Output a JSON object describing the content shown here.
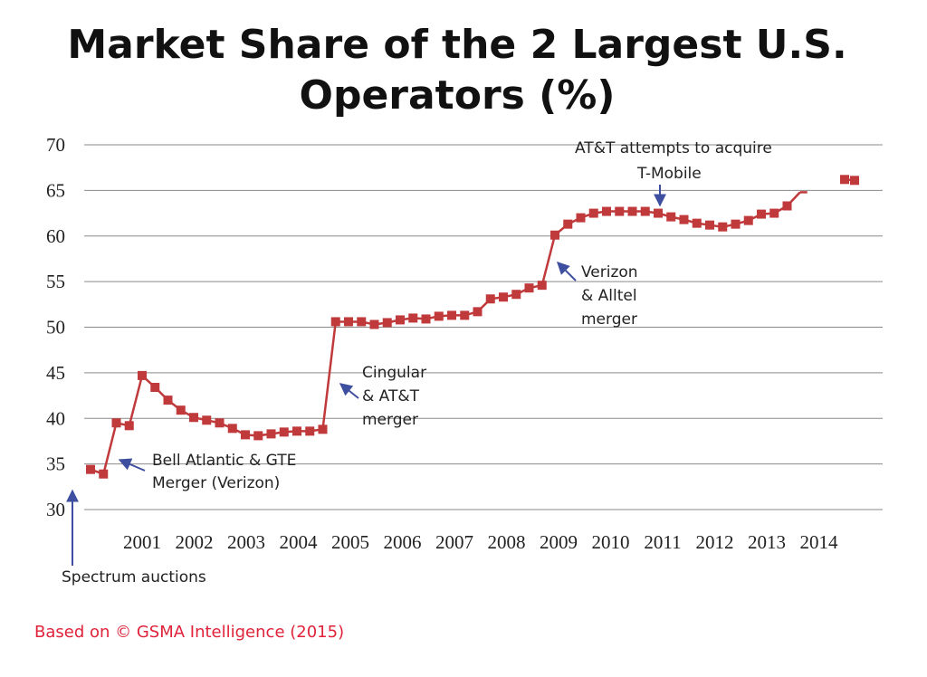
{
  "chart_data": {
    "type": "line",
    "title_lines": [
      "Market Share of the 2 Largest U.S.",
      "Operators (%)"
    ],
    "ylim": [
      30,
      70
    ],
    "yticks": [
      "70",
      "65",
      "60",
      "55",
      "50",
      "45",
      "40",
      "35",
      "30"
    ],
    "xticks": [
      "2001",
      "2002",
      "2003",
      "2004",
      "2005",
      "2006",
      "2007",
      "2008",
      "2009",
      "2010",
      "2011",
      "2012",
      "2013",
      "2014"
    ],
    "series": [
      {
        "name": "Market share of the 2 largest U.S. operators",
        "color": "#c0393b",
        "values": [
          34.4,
          33.9,
          39.5,
          39.2,
          44.7,
          43.4,
          42.0,
          40.9,
          40.1,
          39.8,
          39.5,
          38.9,
          38.2,
          38.1,
          38.3,
          38.5,
          38.6,
          38.6,
          38.8,
          50.6,
          50.6,
          50.6,
          50.3,
          50.5,
          50.8,
          51.0,
          50.9,
          51.2,
          51.3,
          51.3,
          51.7,
          53.1,
          53.3,
          53.6,
          54.3,
          54.6,
          60.1,
          61.3,
          62.0,
          62.5,
          62.7,
          62.7,
          62.7,
          62.7,
          62.5,
          62.1,
          61.8,
          61.4,
          61.2,
          61.0,
          61.3,
          61.7,
          62.4,
          62.5,
          63.3,
          64.8,
          66.2,
          66.1
        ],
        "dashed_segment": [
          64.8,
          64.8
        ]
      }
    ],
    "annotations": [
      {
        "lines": [
          "Spectrum auctions"
        ]
      },
      {
        "lines": [
          "Bell Atlantic & GTE",
          "Merger (Verizon)"
        ]
      },
      {
        "lines": [
          "Cingular",
          "& AT&T",
          "merger"
        ]
      },
      {
        "lines": [
          "Verizon",
          "& Alltel",
          "merger"
        ]
      },
      {
        "lines": [
          "AT&T attempts to acquire",
          "T-Mobile"
        ]
      }
    ]
  },
  "source": "Based on © GSMA Intelligence (2015)",
  "colors": {
    "series": "#c0393b",
    "arrow": "#3f4f9f",
    "grid": "#8a8a8a",
    "source": "#e0223a"
  }
}
